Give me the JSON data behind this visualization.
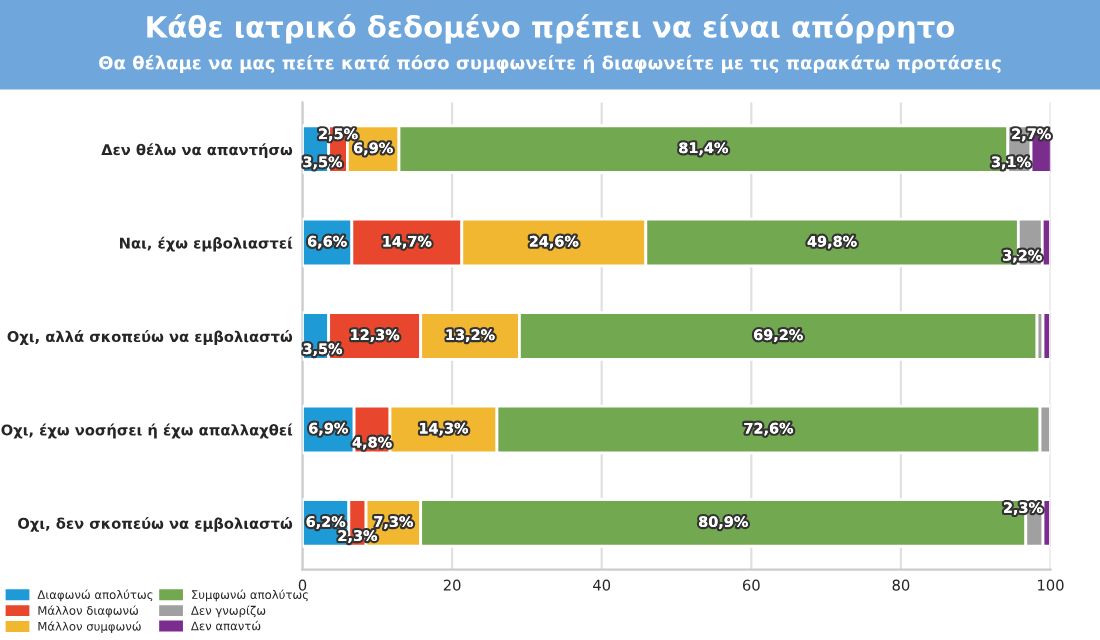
{
  "chart_data": {
    "type": "bar",
    "orientation": "horizontal",
    "stacked": true,
    "title": "Κάθε ιατρικό δεδομένο πρέπει να είναι απόρρητο",
    "subtitle": "Θα θέλαμε να μας πείτε κατά πόσο συμφωνείτε ή διαφωνείτε με τις παρακάτω προτάσεις",
    "categories": [
      "Δεν θέλω να απαντήσω",
      "Ναι, έχω εμβολιαστεί",
      "Οχι, αλλά σκοπεύω να εμβολιαστώ",
      "Οχι, έχω νοσήσει ή έχω απαλλαχθεί",
      "Οχι, δεν σκοπεύω να εμβολιαστώ"
    ],
    "series": [
      {
        "name": "Διαφωνώ απολύτως",
        "color": "#1e9ad6",
        "values": [
          3.5,
          6.6,
          3.5,
          6.9,
          6.2
        ],
        "value_labels": [
          "3,5%",
          "6,6%",
          "3,5%",
          "6,9%",
          "6,2%"
        ]
      },
      {
        "name": "Μάλλον διαφωνώ",
        "color": "#e8472e",
        "values": [
          2.5,
          14.7,
          12.3,
          4.8,
          2.3
        ],
        "value_labels": [
          "2,5%",
          "14,7%",
          "12,3%",
          "4,8%",
          "2,3%"
        ]
      },
      {
        "name": "Μάλλον συμφωνώ",
        "color": "#f2b731",
        "values": [
          6.9,
          24.6,
          13.2,
          14.3,
          7.3
        ],
        "value_labels": [
          "6,9%",
          "24,6%",
          "13,2%",
          "14,3%",
          "7,3%"
        ]
      },
      {
        "name": "Συμφωνώ απολύτως",
        "color": "#72a84f",
        "values": [
          81.4,
          49.8,
          69.2,
          72.6,
          80.9
        ],
        "value_labels": [
          "81,4%",
          "49,8%",
          "69,2%",
          "72,6%",
          "80,9%"
        ]
      },
      {
        "name": "Δεν γνωρίζω",
        "color": "#a0a0a0",
        "values": [
          3.1,
          3.2,
          0.8,
          1.4,
          2.3
        ],
        "value_labels": [
          "3,1%",
          "3,2%",
          null,
          null,
          "2,3%"
        ]
      },
      {
        "name": "Δεν απαντώ",
        "color": "#7b2d8e",
        "values": [
          2.7,
          1.1,
          1.0,
          null,
          1.0
        ],
        "value_labels": [
          "2,7%",
          null,
          null,
          null,
          null
        ]
      }
    ],
    "xlim": [
      0,
      100
    ],
    "xticks": [
      0,
      20,
      40,
      60,
      80,
      100
    ],
    "grid": "x",
    "legend": "bottom left"
  }
}
